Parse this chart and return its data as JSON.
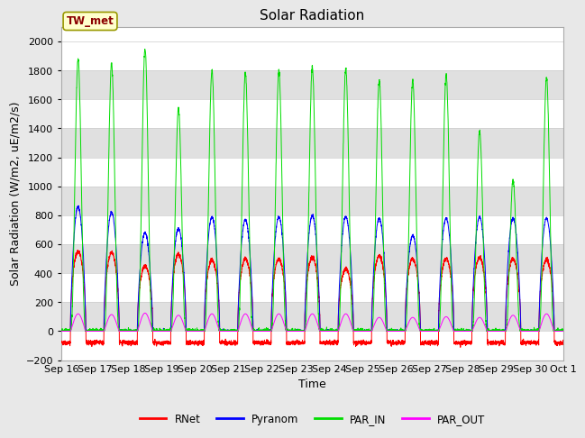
{
  "title": "Solar Radiation",
  "ylabel": "Solar Radiation (W/m2, uE/m2/s)",
  "xlabel": "Time",
  "station_label": "TW_met",
  "ylim": [
    -200,
    2100
  ],
  "yticks": [
    -200,
    0,
    200,
    400,
    600,
    800,
    1000,
    1200,
    1400,
    1600,
    1800,
    2000
  ],
  "xtick_labels": [
    "Sep 16",
    "Sep 17",
    "Sep 18",
    "Sep 19",
    "Sep 20",
    "Sep 21",
    "Sep 22",
    "Sep 23",
    "Sep 24",
    "Sep 25",
    "Sep 26",
    "Sep 27",
    "Sep 28",
    "Sep 29",
    "Sep 30",
    "Oct 1"
  ],
  "colors": {
    "RNet": "#ff0000",
    "Pyranom": "#0000ff",
    "PAR_IN": "#00dd00",
    "PAR_OUT": "#ff00ff"
  },
  "n_days": 15,
  "points_per_day": 288,
  "rnet_day_peaks": [
    550,
    540,
    450,
    530,
    490,
    500,
    500,
    510,
    430,
    520,
    500,
    500,
    510,
    500,
    490
  ],
  "pyranom_day_peaks": [
    860,
    820,
    680,
    710,
    790,
    770,
    790,
    800,
    790,
    780,
    660,
    780,
    790,
    780,
    780
  ],
  "par_in_day_peaks": [
    1880,
    1850,
    1950,
    1530,
    1800,
    1780,
    1800,
    1820,
    1810,
    1730,
    1730,
    1770,
    1380,
    1040,
    1750
  ],
  "par_out_day_peaks": [
    120,
    115,
    125,
    110,
    120,
    120,
    120,
    120,
    120,
    95,
    95,
    100,
    95,
    110,
    120
  ],
  "rnet_night": -80,
  "bg_color": "#e8e8e8",
  "plot_bg_white": "#ffffff",
  "plot_bg_gray": "#dcdcdc",
  "grid_color": "#c8c8c8",
  "band_colors": [
    "#ffffff",
    "#e0e0e0"
  ],
  "title_fontsize": 11,
  "label_fontsize": 9,
  "tick_fontsize": 8
}
